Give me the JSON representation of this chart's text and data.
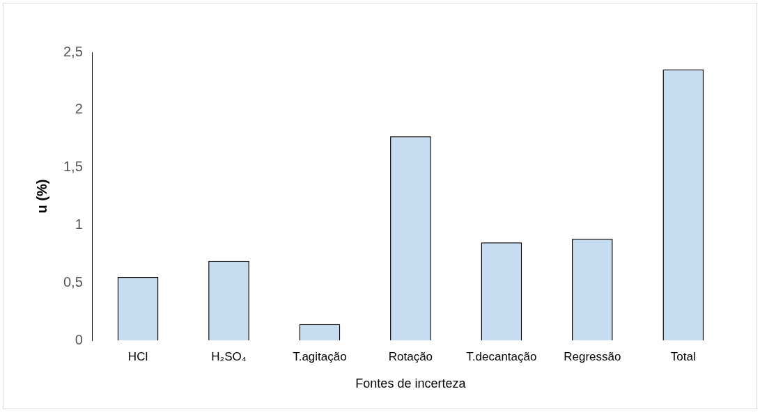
{
  "chart_data": {
    "type": "bar",
    "xlabel": "Fontes de incerteza",
    "ylabel": "u (%)",
    "categories": [
      "HCl",
      "H₂SO₄",
      "T.agitação",
      "Rotação",
      "T.decantação",
      "Regressão",
      "Total"
    ],
    "values": [
      0.55,
      0.69,
      0.14,
      1.77,
      0.85,
      0.88,
      2.35
    ],
    "color": "#c6ddf1",
    "ylim": [
      0,
      2.5
    ],
    "yticks": [
      0,
      {
        "value": 0.5,
        "label": "0,5"
      },
      1,
      {
        "value": 1.5,
        "label": "1,5"
      },
      2,
      {
        "value": 2.5,
        "label": "2,5"
      }
    ],
    "grid": false,
    "legend": false
  }
}
